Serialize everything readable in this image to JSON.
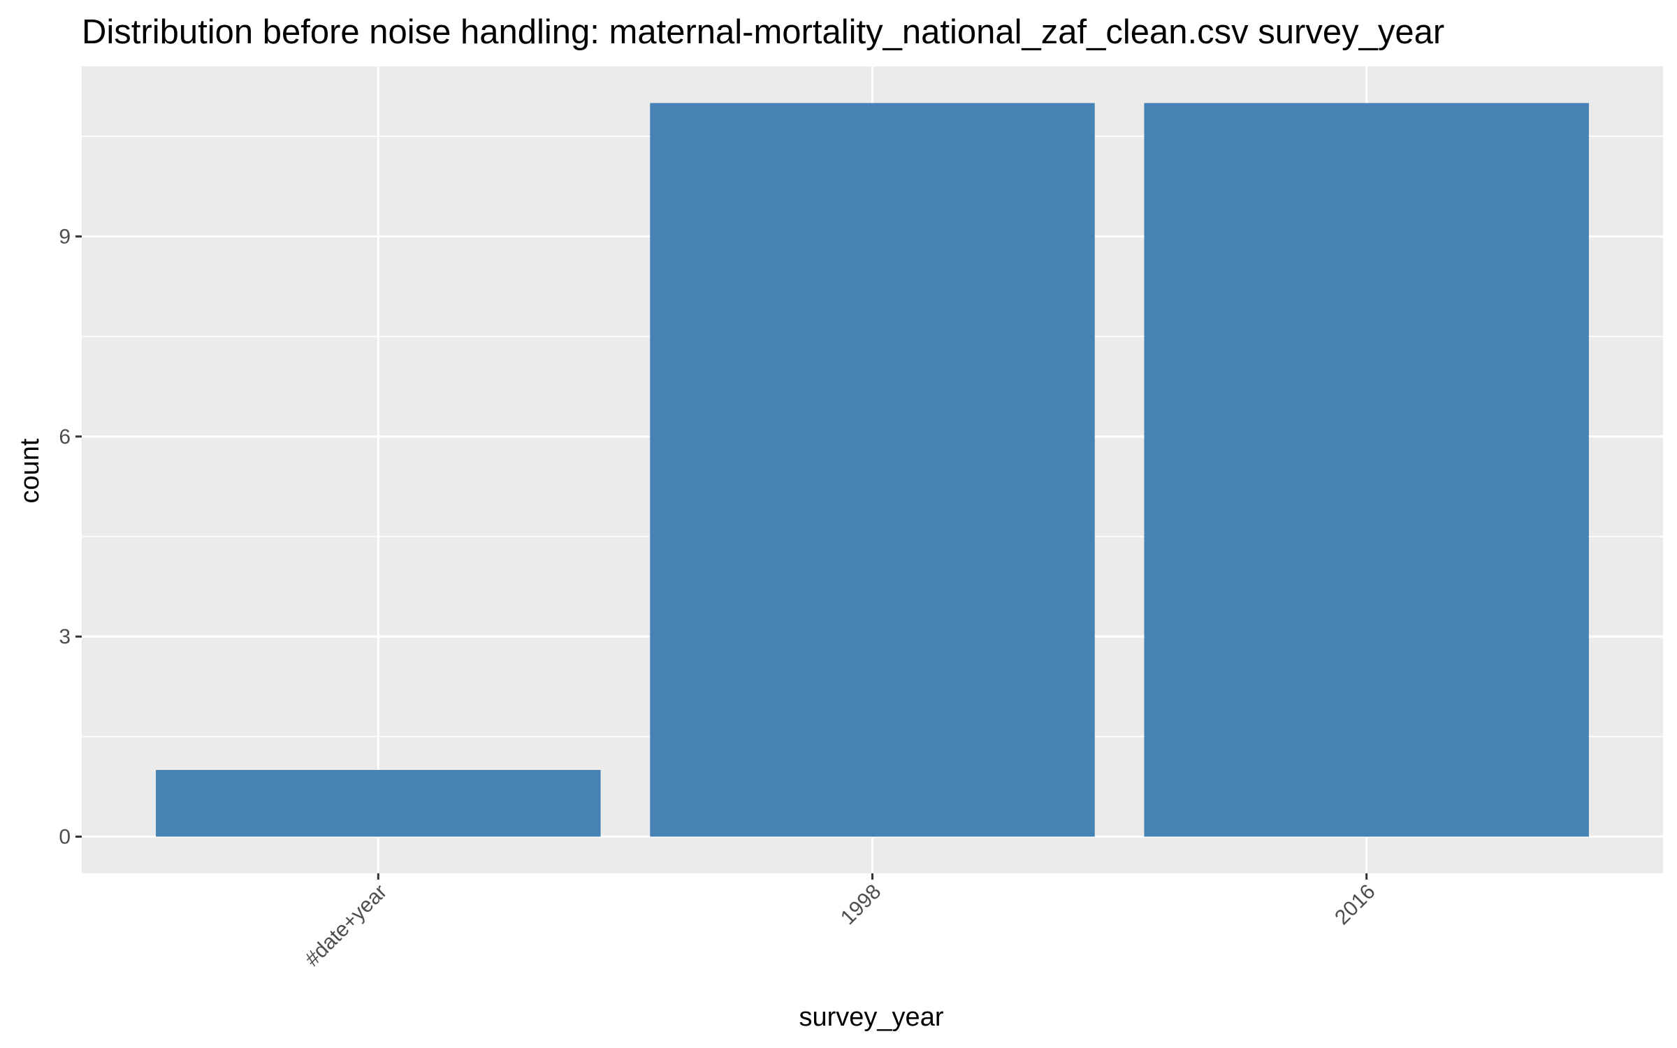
{
  "chart_data": {
    "type": "bar",
    "title": "Distribution before noise handling: maternal-mortality_national_zaf_clean.csv survey_year",
    "xlabel": "survey_year",
    "ylabel": "count",
    "categories": [
      "#date+year",
      "1998",
      "2016"
    ],
    "values": [
      1,
      11,
      11
    ],
    "ylim": [
      -0.55,
      11.55
    ],
    "yticks": [
      0,
      3,
      6,
      9
    ],
    "grid": true,
    "legend": "none",
    "x_tick_rotation": "45 degrees",
    "colors": {
      "bar": "#4682B4",
      "panel": "#EBEBEB",
      "grid": "#FFFFFF",
      "tick": "#333333"
    }
  }
}
